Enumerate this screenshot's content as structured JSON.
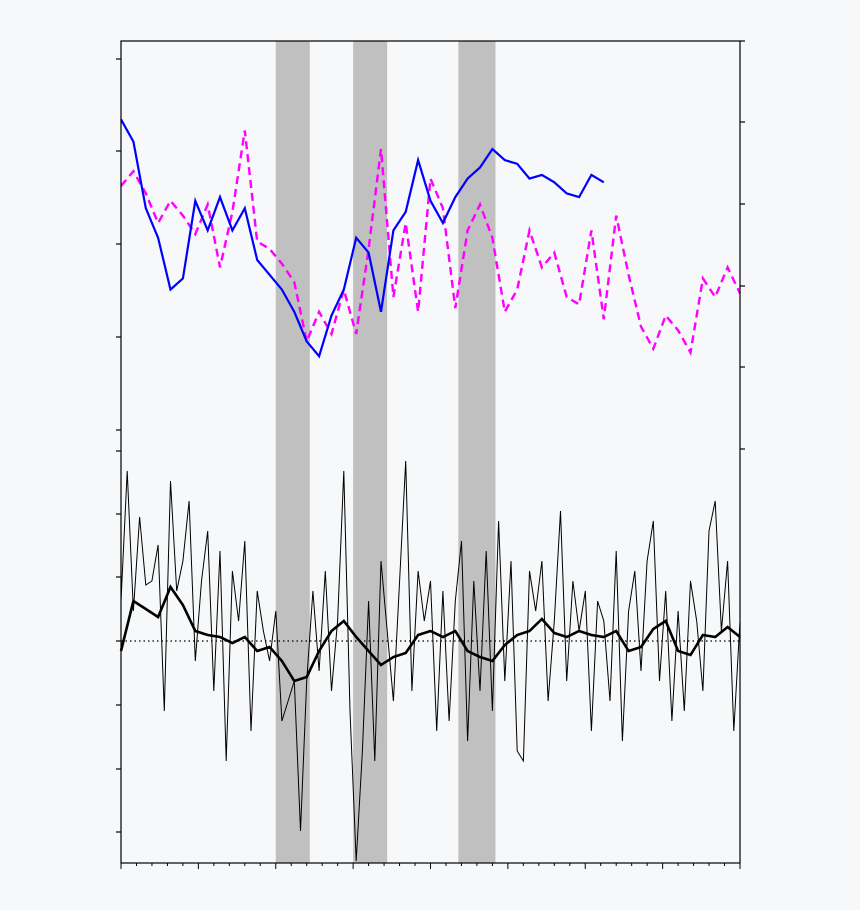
{
  "chart_data": [
    {
      "type": "line",
      "title": "",
      "xlabel": "",
      "ylabel": "",
      "xlim": [
        0,
        200
      ],
      "ylim_left": [
        0,
        1
      ],
      "ylim_right": [
        0,
        1
      ],
      "shaded_periods": [
        [
          50,
          61
        ],
        [
          75,
          86
        ],
        [
          109,
          121
        ]
      ],
      "colors": {
        "series_a": "#0000ff",
        "series_b": "#ff00ff",
        "shading": "#c0c0c0"
      },
      "series": [
        {
          "style": "solid",
          "color": "#0000ff",
          "axis": "left",
          "x": [
            0,
            4,
            8,
            12,
            16,
            20,
            24,
            28,
            32,
            36,
            40,
            44,
            48,
            52,
            56,
            60,
            64,
            68,
            72,
            76,
            80,
            84,
            88,
            92,
            96,
            100,
            104,
            108,
            112,
            116,
            120,
            124,
            128,
            132,
            136,
            140,
            144,
            148,
            152,
            156
          ],
          "y": [
            0.88,
            0.82,
            0.64,
            0.56,
            0.42,
            0.45,
            0.66,
            0.58,
            0.67,
            0.58,
            0.64,
            0.5,
            0.46,
            0.42,
            0.36,
            0.28,
            0.24,
            0.35,
            0.42,
            0.56,
            0.52,
            0.36,
            0.58,
            0.63,
            0.77,
            0.66,
            0.6,
            0.67,
            0.72,
            0.75,
            0.8,
            0.77,
            0.76,
            0.72,
            0.73,
            0.71,
            0.68,
            0.67,
            0.73,
            0.71
          ]
        },
        {
          "style": "dashed",
          "color": "#ff00ff",
          "axis": "right",
          "x": [
            0,
            4,
            8,
            12,
            16,
            20,
            24,
            28,
            32,
            36,
            40,
            44,
            48,
            52,
            56,
            60,
            64,
            68,
            72,
            76,
            80,
            84,
            88,
            92,
            96,
            100,
            104,
            108,
            112,
            116,
            120,
            124,
            128,
            132,
            136,
            140,
            144,
            148,
            152,
            156,
            160,
            164,
            168,
            172,
            176,
            180,
            184,
            188,
            192,
            196,
            200
          ],
          "y": [
            0.7,
            0.74,
            0.68,
            0.6,
            0.66,
            0.62,
            0.57,
            0.65,
            0.48,
            0.63,
            0.85,
            0.55,
            0.53,
            0.49,
            0.44,
            0.28,
            0.36,
            0.3,
            0.42,
            0.3,
            0.53,
            0.8,
            0.4,
            0.6,
            0.36,
            0.72,
            0.64,
            0.37,
            0.58,
            0.65,
            0.56,
            0.36,
            0.42,
            0.58,
            0.48,
            0.52,
            0.4,
            0.38,
            0.58,
            0.34,
            0.62,
            0.46,
            0.32,
            0.26,
            0.35,
            0.31,
            0.25,
            0.45,
            0.4,
            0.48,
            0.41
          ]
        },
        {
          "style": "thin-solid",
          "color": "#000000",
          "axis": "left-lower",
          "x": [
            0,
            2,
            4,
            6,
            8,
            10,
            12,
            14,
            16,
            18,
            20,
            22,
            24,
            26,
            28,
            30,
            32,
            34,
            36,
            38,
            40,
            42,
            44,
            46,
            48,
            50,
            52,
            54,
            56,
            58,
            60,
            62,
            64,
            66,
            68,
            70,
            72,
            74,
            76,
            78,
            80,
            82,
            84,
            86,
            88,
            90,
            92,
            94,
            96,
            98,
            100,
            102,
            104,
            106,
            108,
            110,
            112,
            114,
            116,
            118,
            120,
            122,
            124,
            126,
            128,
            130,
            132,
            134,
            136,
            138,
            140,
            142,
            144,
            146,
            148,
            150,
            152,
            154,
            156,
            158,
            160,
            162,
            164,
            166,
            168,
            170,
            172,
            174,
            176,
            178,
            180,
            182,
            184,
            186,
            188,
            190,
            192,
            194,
            196,
            198,
            200
          ],
          "y": [
            0.2,
            0.85,
            0.15,
            0.62,
            0.28,
            0.3,
            0.48,
            -0.35,
            0.8,
            0.25,
            0.4,
            0.7,
            -0.1,
            0.3,
            0.55,
            -0.25,
            0.45,
            -0.6,
            0.35,
            0.1,
            0.5,
            -0.45,
            0.25,
            0.05,
            -0.1,
            0.15,
            -0.4,
            -0.3,
            -0.2,
            -0.95,
            -0.2,
            0.25,
            -0.15,
            0.35,
            -0.25,
            0.1,
            0.85,
            -0.35,
            -1.1,
            -0.55,
            0.2,
            -0.6,
            0.4,
            0.05,
            -0.3,
            0.3,
            0.9,
            -0.25,
            0.35,
            0.1,
            0.3,
            -0.45,
            0.25,
            -0.4,
            0.2,
            0.5,
            -0.5,
            0.3,
            -0.25,
            0.45,
            -0.35,
            0.6,
            -0.2,
            0.4,
            -0.55,
            -0.6,
            0.35,
            0.15,
            0.4,
            -0.3,
            0.1,
            0.65,
            -0.2,
            0.3,
            0.05,
            0.25,
            -0.45,
            0.2,
            0.1,
            -0.3,
            0.45,
            -0.5,
            0.15,
            0.35,
            -0.15,
            0.4,
            0.6,
            -0.2,
            0.25,
            -0.4,
            0.15,
            -0.35,
            0.3,
            0.1,
            -0.25,
            0.55,
            0.7,
            0.05,
            0.4,
            -0.45,
            0.1
          ]
        },
        {
          "style": "thick-solid",
          "color": "#000000",
          "axis": "left-lower",
          "x": [
            0,
            4,
            8,
            12,
            16,
            20,
            24,
            28,
            32,
            36,
            40,
            44,
            48,
            52,
            56,
            60,
            64,
            68,
            72,
            76,
            80,
            84,
            88,
            92,
            96,
            100,
            104,
            108,
            112,
            116,
            120,
            124,
            128,
            132,
            136,
            140,
            144,
            148,
            152,
            156,
            160,
            164,
            168,
            172,
            176,
            180,
            184,
            188,
            192,
            196,
            200
          ],
          "y": [
            -0.05,
            0.2,
            0.16,
            0.12,
            0.27,
            0.18,
            0.05,
            0.03,
            0.02,
            -0.01,
            0.02,
            -0.05,
            -0.03,
            -0.1,
            -0.2,
            -0.18,
            -0.05,
            0.05,
            0.1,
            0.02,
            -0.05,
            -0.12,
            -0.08,
            -0.06,
            0.03,
            0.05,
            0.02,
            0.05,
            -0.05,
            -0.08,
            -0.1,
            -0.02,
            0.03,
            0.05,
            0.11,
            0.04,
            0.02,
            0.05,
            0.03,
            0.02,
            0.05,
            -0.05,
            -0.03,
            0.06,
            0.1,
            -0.05,
            -0.07,
            0.03,
            0.02,
            0.07,
            0.02
          ]
        }
      ]
    }
  ]
}
